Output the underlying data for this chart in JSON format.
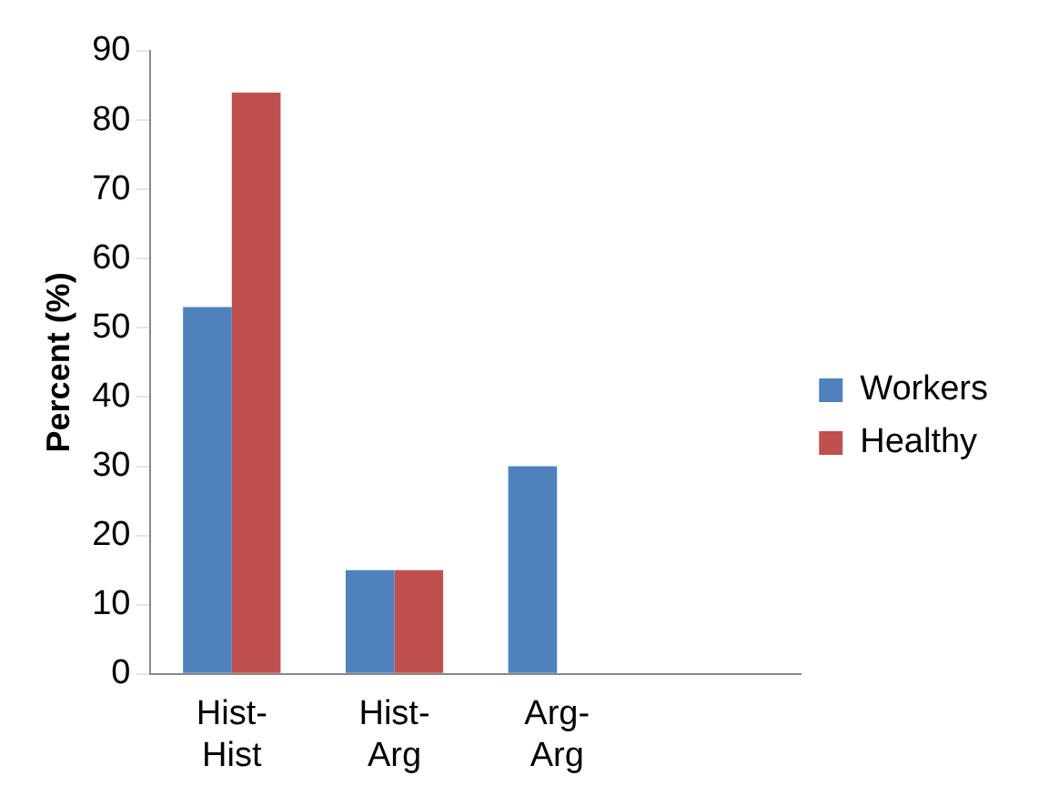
{
  "chart_data": {
    "type": "bar",
    "ylabel": "Percent (%)",
    "categories": [
      "Hist-Hist",
      "Hist-Arg",
      "Arg-Arg",
      null
    ],
    "series": [
      {
        "name": "Workers",
        "color": "#4f81bd",
        "values": [
          53,
          15,
          30,
          null
        ]
      },
      {
        "name": "Healthy",
        "color": "#c0504d",
        "values": [
          84,
          15,
          0,
          null
        ]
      }
    ],
    "ylim": [
      0,
      90
    ],
    "yticks": [
      0,
      10,
      20,
      30,
      40,
      50,
      60,
      70,
      80,
      90
    ],
    "grid": false,
    "legend": "right"
  }
}
